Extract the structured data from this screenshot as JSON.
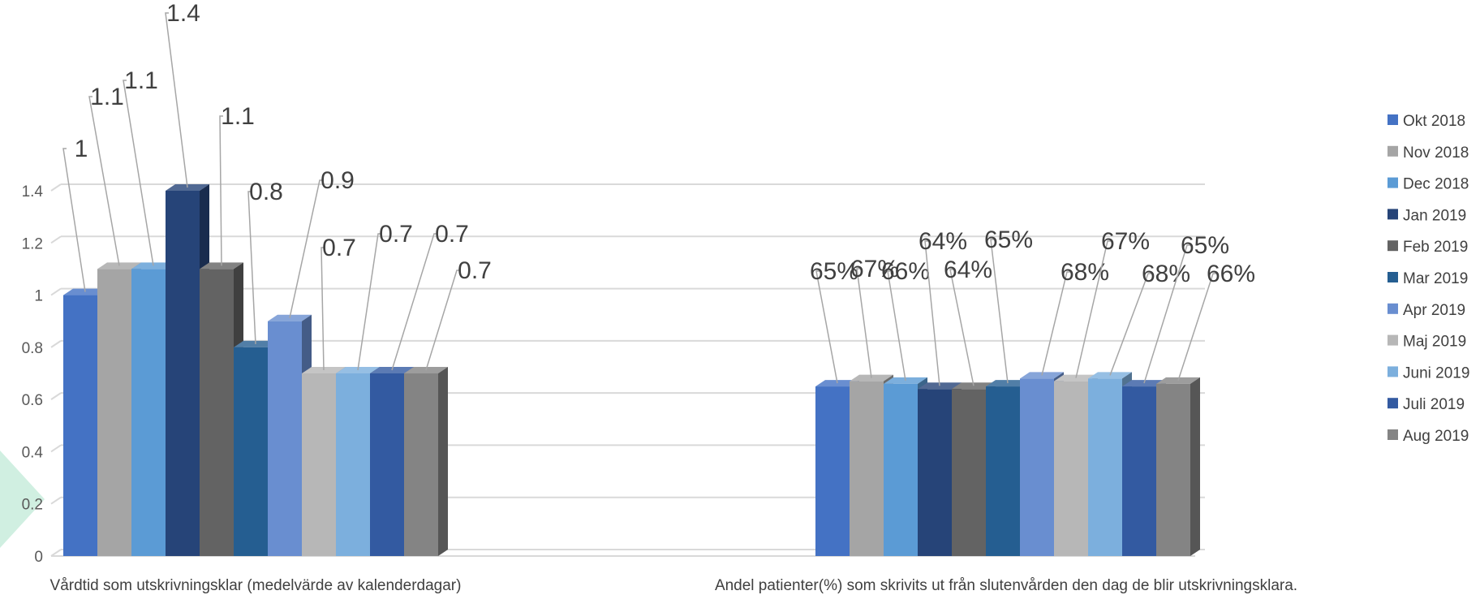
{
  "chart_data": {
    "type": "bar",
    "style": "3d-clustered-column",
    "y_axis": {
      "ticks": [
        "0",
        "0.2",
        "0.4",
        "0.6",
        "0.8",
        "1",
        "1.2",
        "1.4"
      ],
      "ylim": [
        0,
        1.4
      ]
    },
    "grid": true,
    "legend_position": "right",
    "categories": [
      "Vårdtid som utskrivningsklar (medelvärde av kalenderdagar)",
      "Andel patienter(%) som skrivits ut från slutenvården den dag de blir utskrivningsklara."
    ],
    "series": [
      {
        "name": "Okt 2018",
        "color": "#4472C4",
        "values": [
          1.0,
          0.65
        ],
        "labels": [
          "1",
          "65%"
        ]
      },
      {
        "name": "Nov 2018",
        "color": "#A5A5A5",
        "values": [
          1.1,
          0.67
        ],
        "labels": [
          "1.1",
          "67%"
        ]
      },
      {
        "name": "Dec 2018",
        "color": "#5B9BD5",
        "values": [
          1.1,
          0.66
        ],
        "labels": [
          "1.1",
          "66%"
        ]
      },
      {
        "name": "Jan 2019",
        "color": "#264478",
        "values": [
          1.4,
          0.64
        ],
        "labels": [
          "1.4",
          "64%"
        ]
      },
      {
        "name": "Feb 2019",
        "color": "#636363",
        "values": [
          1.1,
          0.64
        ],
        "labels": [
          "1.1",
          "64%"
        ]
      },
      {
        "name": "Mar 2019",
        "color": "#255E91",
        "values": [
          0.8,
          0.65
        ],
        "labels": [
          "0.8",
          "65%"
        ]
      },
      {
        "name": "Apr 2019",
        "color": "#698ED0",
        "values": [
          0.9,
          0.68
        ],
        "labels": [
          "0.9",
          "68%"
        ]
      },
      {
        "name": "Maj 2019",
        "color": "#B7B7B7",
        "values": [
          0.7,
          0.67
        ],
        "labels": [
          "0.7",
          "67%"
        ]
      },
      {
        "name": "Juni 2019",
        "color": "#7CAFDD",
        "values": [
          0.7,
          0.68
        ],
        "labels": [
          "0.7",
          "68%"
        ]
      },
      {
        "name": "Juli 2019",
        "color": "#335AA1",
        "values": [
          0.7,
          0.65
        ],
        "labels": [
          "0.7",
          "65%"
        ]
      },
      {
        "name": "Aug 2019",
        "color": "#848484",
        "values": [
          0.7,
          0.66
        ],
        "labels": [
          "0.7",
          "66%"
        ]
      }
    ]
  }
}
